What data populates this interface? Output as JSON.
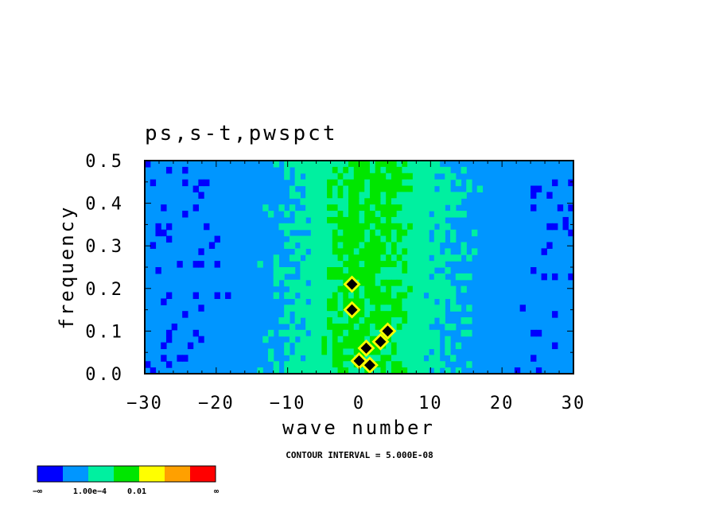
{
  "chart_data": {
    "type": "heatmap",
    "title": "ps,s-t,pwspct",
    "xlabel": "wave number",
    "ylabel": "frequency",
    "xlim": [
      -30,
      30
    ],
    "ylim": [
      0.0,
      0.5
    ],
    "x_ticks": [
      -30,
      -20,
      -10,
      0,
      10,
      20,
      30
    ],
    "x_tick_labels": [
      "−30",
      "−20",
      "−10",
      "0",
      "10",
      "20",
      "30"
    ],
    "y_ticks": [
      0.0,
      0.1,
      0.2,
      0.3,
      0.4,
      0.5
    ],
    "y_tick_labels": [
      "0.0",
      "0.1",
      "0.2",
      "0.3",
      "0.4",
      "0.5"
    ],
    "annotation": "CONTOUR INTERVAL = 5.000E-08",
    "colorbar": {
      "colors": [
        "#0000ff",
        "#0096ff",
        "#00f0a0",
        "#00e600",
        "#ffff00",
        "#ffa000",
        "#ff0000"
      ],
      "labels": [
        "−∞",
        "1.00e−4",
        "0.01",
        "∞"
      ]
    },
    "band_colors": {
      "low": "#0096ff",
      "mid": "#00f0a0",
      "high": "#00e600",
      "min": "#0000ff"
    },
    "peaks": [
      {
        "k": -1,
        "f": 0.21
      },
      {
        "k": -1,
        "f": 0.15
      },
      {
        "k": 1,
        "f": 0.06
      },
      {
        "k": 3,
        "f": 0.075
      },
      {
        "k": 4,
        "f": 0.1
      },
      {
        "k": 0,
        "f": 0.03
      },
      {
        "k": 1.5,
        "f": 0.02
      }
    ]
  }
}
